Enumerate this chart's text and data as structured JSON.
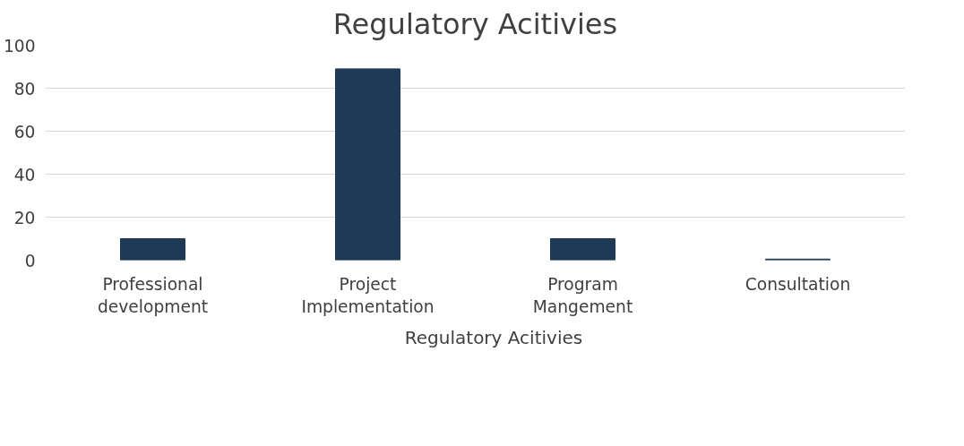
{
  "chart_data": {
    "type": "bar",
    "title": "Regulatory Acitivies",
    "categories": [
      "Professional development",
      "Project Implementation",
      "Program Mangement",
      "Consultation"
    ],
    "series": [
      {
        "name": "Regulatory Acitivies",
        "color": "#1f3a56",
        "values": [
          10,
          89,
          10,
          0.5
        ]
      }
    ],
    "ylim": [
      0,
      100
    ],
    "yticks": [
      0,
      20,
      40,
      60,
      80,
      100
    ],
    "grid": "y",
    "legend": "bottom"
  }
}
